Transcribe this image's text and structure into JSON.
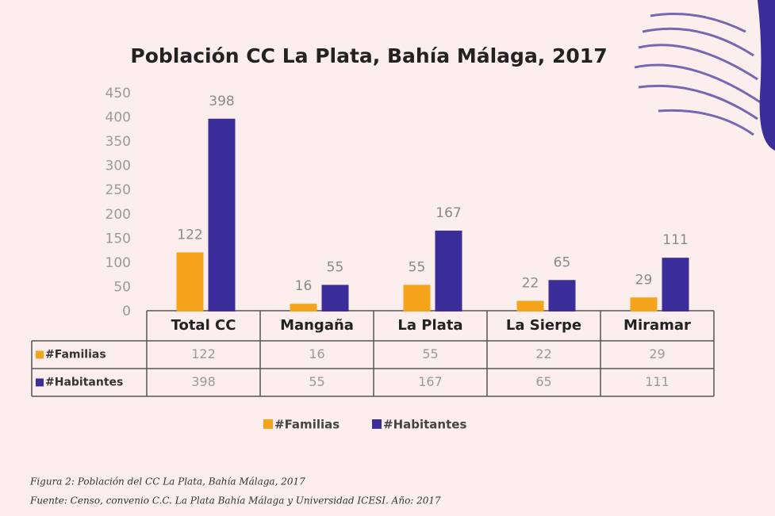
{
  "chart_data": {
    "type": "bar",
    "title": "Población CC La Plata, Bahía Málaga, 2017",
    "categories": [
      "Total CC",
      "Mangaña",
      "La Plata",
      "La Sierpe",
      "Miramar"
    ],
    "series": [
      {
        "name": "#Familias",
        "color": "#f5a31a",
        "values": [
          122,
          16,
          55,
          22,
          29
        ]
      },
      {
        "name": "#Habitantes",
        "color": "#3b2e9a",
        "values": [
          398,
          55,
          167,
          65,
          111
        ]
      }
    ],
    "ylim": [
      0,
      450
    ],
    "yticks": [
      0,
      50,
      100,
      150,
      200,
      250,
      300,
      350,
      400,
      450
    ],
    "grid": false
  },
  "caption": [
    "Figura 2: Población del CC La Plata, Bahía Málaga, 2017",
    "Fuente: Censo, convenio C.C. La Plata Bahía Málaga y Universidad ICESI. Año: 2017"
  ]
}
